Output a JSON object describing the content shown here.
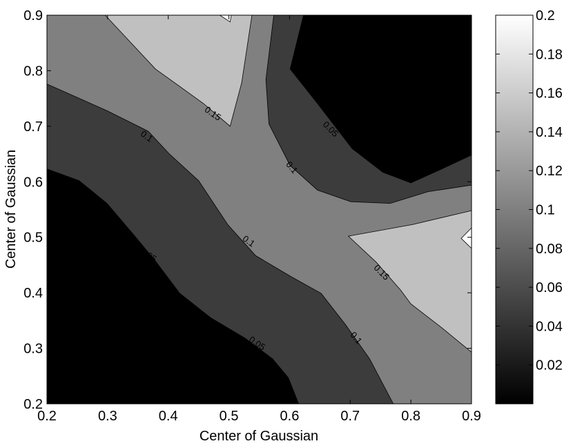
{
  "chart_data": {
    "type": "contour",
    "xlabel": "Center of Gaussian",
    "ylabel": "Center of Gaussian",
    "xlim": [
      0.2,
      0.9
    ],
    "ylim": [
      0.2,
      0.9
    ],
    "xticks": [
      0.2,
      0.3,
      0.4,
      0.5,
      0.6,
      0.7,
      0.8,
      0.9
    ],
    "yticks": [
      0.2,
      0.3,
      0.4,
      0.5,
      0.6,
      0.7,
      0.8,
      0.9
    ],
    "background_color": "#808080",
    "regions": [
      {
        "level": 0.05,
        "color": "#3c3c3c",
        "points": [
          [
            0.2,
            0.776
          ],
          [
            0.299,
            0.728
          ],
          [
            0.367,
            0.691
          ],
          [
            0.401,
            0.651
          ],
          [
            0.45,
            0.602
          ],
          [
            0.498,
            0.523
          ],
          [
            0.544,
            0.467
          ],
          [
            0.601,
            0.43
          ],
          [
            0.652,
            0.399
          ],
          [
            0.692,
            0.343
          ],
          [
            0.732,
            0.281
          ],
          [
            0.771,
            0.2
          ],
          [
            0.2,
            0.2
          ]
        ]
      },
      {
        "level": 0,
        "color": "#000000",
        "points": [
          [
            0.2,
            0.623
          ],
          [
            0.253,
            0.602
          ],
          [
            0.299,
            0.561
          ],
          [
            0.345,
            0.502
          ],
          [
            0.379,
            0.457
          ],
          [
            0.419,
            0.399
          ],
          [
            0.47,
            0.355
          ],
          [
            0.527,
            0.318
          ],
          [
            0.572,
            0.281
          ],
          [
            0.598,
            0.247
          ],
          [
            0.615,
            0.2
          ],
          [
            0.2,
            0.2
          ]
        ]
      },
      {
        "level": 0.05,
        "color": "#3c3c3c",
        "points": [
          [
            0.574,
            0.9
          ],
          [
            0.561,
            0.784
          ],
          [
            0.566,
            0.704
          ],
          [
            0.601,
            0.629
          ],
          [
            0.646,
            0.585
          ],
          [
            0.701,
            0.564
          ],
          [
            0.766,
            0.561
          ],
          [
            0.828,
            0.582
          ],
          [
            0.9,
            0.594
          ],
          [
            0.9,
            0.9
          ]
        ]
      },
      {
        "level": 0,
        "color": "#000000",
        "points": [
          [
            0.623,
            0.9
          ],
          [
            0.601,
            0.803
          ],
          [
            0.646,
            0.741
          ],
          [
            0.703,
            0.66
          ],
          [
            0.754,
            0.617
          ],
          [
            0.8,
            0.598
          ],
          [
            0.851,
            0.623
          ],
          [
            0.9,
            0.648
          ],
          [
            0.9,
            0.9
          ]
        ]
      },
      {
        "level": 0.15,
        "color": "#c0c0c0",
        "points": [
          [
            0.296,
            0.9
          ],
          [
            0.379,
            0.803
          ],
          [
            0.458,
            0.741
          ],
          [
            0.502,
            0.7
          ],
          [
            0.521,
            0.778
          ],
          [
            0.538,
            0.9
          ]
        ]
      },
      {
        "level": 0.2,
        "color": "#ffffff",
        "points": [
          [
            0.485,
            0.9
          ],
          [
            0.502,
            0.888
          ],
          [
            0.504,
            0.9
          ]
        ]
      },
      {
        "level": 0.15,
        "color": "#c0c0c0",
        "points": [
          [
            0.9,
            0.548
          ],
          [
            0.803,
            0.523
          ],
          [
            0.697,
            0.502
          ],
          [
            0.743,
            0.455
          ],
          [
            0.783,
            0.405
          ],
          [
            0.8,
            0.38
          ],
          [
            0.851,
            0.337
          ],
          [
            0.9,
            0.293
          ]
        ]
      },
      {
        "level": 0.2,
        "color": "#ffffff",
        "points": [
          [
            0.9,
            0.517
          ],
          [
            0.883,
            0.498
          ],
          [
            0.9,
            0.48
          ]
        ]
      }
    ],
    "contour_labels": [
      {
        "level": 0.15,
        "x": 0.473,
        "y": 0.722
      },
      {
        "level": 0.1,
        "x": 0.364,
        "y": 0.681
      },
      {
        "level": 0.05,
        "x": 0.667,
        "y": 0.694
      },
      {
        "level": 0.1,
        "x": 0.603,
        "y": 0.625
      },
      {
        "level": 0.1,
        "x": 0.532,
        "y": 0.492
      },
      {
        "level": 0.05,
        "x": 0.367,
        "y": 0.467
      },
      {
        "level": 0.05,
        "x": 0.546,
        "y": 0.308
      },
      {
        "level": 0.15,
        "x": 0.751,
        "y": 0.436
      },
      {
        "level": 0.1,
        "x": 0.709,
        "y": 0.318
      }
    ],
    "colorbar": {
      "lim": [
        0,
        0.2
      ],
      "ticks": [
        0.02,
        0.04,
        0.06,
        0.08,
        0.1,
        0.12,
        0.14,
        0.16,
        0.18,
        0.2
      ]
    }
  }
}
